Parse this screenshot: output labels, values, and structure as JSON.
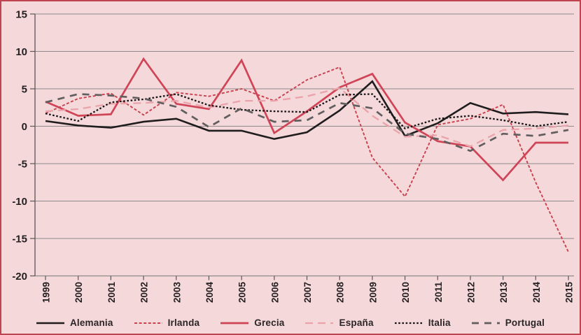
{
  "chart_data": {
    "type": "line",
    "title": "",
    "xlabel": "",
    "ylabel": "",
    "x": [
      "1999",
      "2000",
      "2001",
      "2002",
      "2003",
      "2004",
      "2005",
      "2006",
      "2007",
      "2008",
      "2009",
      "2010",
      "2011",
      "2012",
      "2013",
      "2014",
      "2015"
    ],
    "ylim": [
      -20,
      15
    ],
    "yticks": [
      15,
      10,
      5,
      0,
      -5,
      -10,
      -15,
      -20
    ],
    "grid": true,
    "legend_position": "bottom",
    "background_color": "#f5d8da",
    "border_color": "#bf4451",
    "grid_color": "#8f8a8a",
    "axis_color": "#5a5557",
    "series": [
      {
        "name": "Alemania",
        "color": "#1f1d1e",
        "style": "solid",
        "width": 2.6,
        "dash": "",
        "values": [
          0.7,
          0.1,
          -0.2,
          0.6,
          1.0,
          -0.6,
          -0.6,
          -1.7,
          -0.8,
          2.1,
          6.0,
          -1.3,
          0.4,
          3.1,
          1.7,
          1.9,
          1.6
        ]
      },
      {
        "name": "Irlanda",
        "color": "#c9404f",
        "style": "dotted",
        "width": 1.9,
        "dash": "4 2.6",
        "values": [
          1.7,
          3.7,
          4.4,
          1.5,
          4.5,
          4.0,
          5.0,
          3.4,
          6.2,
          7.9,
          -4.2,
          -9.4,
          0.2,
          1.0,
          2.9,
          -7.5,
          -16.8
        ]
      },
      {
        "name": "Grecia",
        "color": "#cf4456",
        "style": "solid",
        "width": 2.7,
        "dash": "",
        "values": [
          3.3,
          1.4,
          1.6,
          9.0,
          3.0,
          2.3,
          8.8,
          -0.9,
          2.0,
          5.2,
          7.0,
          0.5,
          -2.0,
          -2.7,
          -7.2,
          -2.2,
          -2.2
        ]
      },
      {
        "name": "España",
        "color": "#e9a3ab",
        "style": "dashed",
        "width": 2.3,
        "dash": "11 7",
        "values": [
          2.0,
          2.3,
          3.0,
          3.1,
          3.4,
          2.5,
          3.4,
          3.4,
          4.0,
          5.1,
          1.4,
          -1.4,
          -1.2,
          -2.7,
          -0.5,
          -0.3,
          0.1
        ]
      },
      {
        "name": "Italia",
        "color": "#171415",
        "style": "dotted",
        "width": 2.3,
        "dash": "2.6 2.6",
        "values": [
          1.7,
          0.7,
          3.2,
          3.6,
          4.3,
          2.8,
          2.2,
          2.0,
          1.9,
          4.2,
          4.3,
          -0.3,
          1.0,
          1.4,
          0.8,
          0.0,
          0.6
        ]
      },
      {
        "name": "Portugal",
        "color": "#615e5f",
        "style": "dashed",
        "width": 2.7,
        "dash": "10 8",
        "values": [
          3.2,
          4.3,
          4.1,
          3.7,
          2.6,
          -0.1,
          2.4,
          0.6,
          0.8,
          3.1,
          2.4,
          -1.0,
          -1.7,
          -3.3,
          -1.0,
          -1.3,
          -0.5
        ]
      }
    ]
  }
}
